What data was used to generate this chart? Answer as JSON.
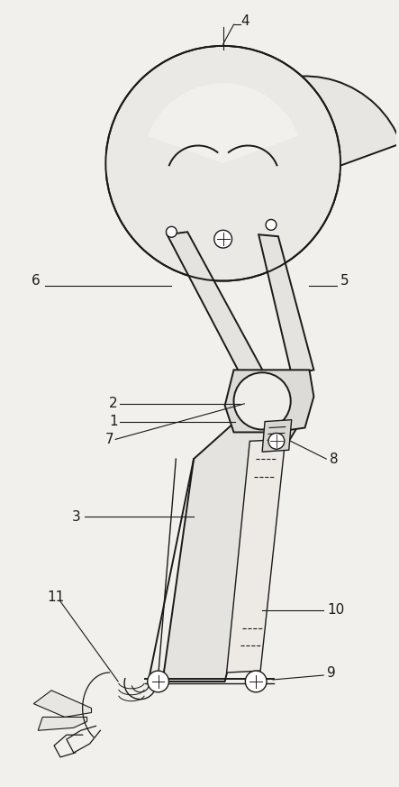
{
  "bg_color": "#f2f0ec",
  "line_color": "#1a1a1a",
  "fig_width": 4.43,
  "fig_height": 8.73,
  "dpi": 100
}
